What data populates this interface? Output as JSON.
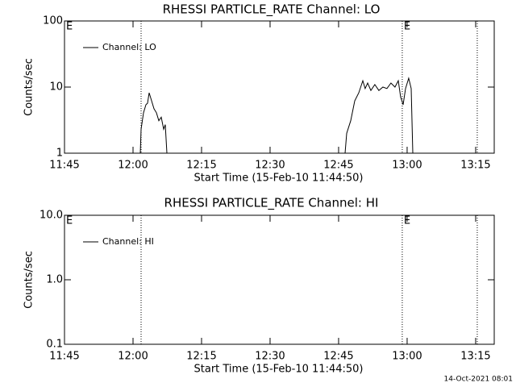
{
  "chart_data": [
    {
      "type": "line",
      "title": "RHESSI PARTICLE_RATE Channel: LO",
      "xlabel": "Start Time (15-Feb-10 11:44:50)",
      "ylabel": "Counts/sec",
      "x": [
        "12:01:35",
        "12:01:46",
        "12:02:18",
        "12:02:49",
        "12:03:11",
        "12:03:32",
        "12:04:04",
        "12:04:35",
        "12:05:07",
        "12:05:39",
        "12:06:11",
        "12:06:42",
        "12:07:04",
        "12:07:25",
        null,
        "12:46:25",
        "12:46:46",
        "12:47:39",
        "12:48:32",
        "12:49:25",
        "12:50:18",
        "12:50:49",
        "12:51:21",
        "12:52:04",
        "12:52:56",
        "12:53:49",
        "12:54:42",
        "12:55:35",
        "12:56:28",
        "12:57:21",
        "12:58:04",
        "12:58:35",
        "12:59:07",
        "12:59:39",
        "13:00:21",
        "13:00:53",
        "13:01:14"
      ],
      "series": [
        {
          "name": "Channel: LO",
          "color": "#000000",
          "values": [
            1,
            2.3,
            4.1,
            5.4,
            5.7,
            8.2,
            6.2,
            4.7,
            4.1,
            3.1,
            3.5,
            2.3,
            2.7,
            1,
            null,
            1,
            2.0,
            3.1,
            6.2,
            8.2,
            12.5,
            9.5,
            11.5,
            8.9,
            10.9,
            8.9,
            10.0,
            9.5,
            11.5,
            10.0,
            12.5,
            7.1,
            5.4,
            9.5,
            13.6,
            9.5,
            1
          ]
        }
      ],
      "xlim": [
        "11:45:00",
        "13:19:04"
      ],
      "xticks": [
        "11:45",
        "12:00",
        "12:15",
        "12:30",
        "12:45",
        "13:00",
        "13:15"
      ],
      "ylim": [
        1,
        100
      ],
      "yticks": [
        1,
        10,
        100
      ],
      "log_y": true,
      "vlines": [
        "12:01:46",
        "12:58:56",
        "13:15:21"
      ],
      "annotations": [
        {
          "text": "E",
          "x": "11:45:00"
        },
        {
          "text": "E",
          "x": "12:58:56"
        }
      ]
    },
    {
      "type": "line",
      "title": "RHESSI PARTICLE_RATE Channel: HI",
      "xlabel": "Start Time (15-Feb-10 11:44:50)",
      "ylabel": "Counts/sec",
      "x": [],
      "series": [
        {
          "name": "Channel: HI",
          "color": "#000000",
          "values": []
        }
      ],
      "xlim": [
        "11:45:00",
        "13:19:04"
      ],
      "xticks": [
        "11:45",
        "12:00",
        "12:15",
        "12:30",
        "12:45",
        "13:00",
        "13:15"
      ],
      "ylim": [
        0.1,
        10
      ],
      "yticks": [
        {
          "value": 0.1,
          "label": "0.1"
        },
        {
          "value": 1,
          "label": "1.0"
        },
        {
          "value": 10,
          "label": "10.0"
        }
      ],
      "log_y": true,
      "vlines": [
        "12:01:46",
        "12:58:56",
        "13:15:21"
      ],
      "annotations": [
        {
          "text": "E",
          "x": "11:45:00"
        },
        {
          "text": "E",
          "x": "12:58:56"
        }
      ]
    }
  ],
  "footer": "14-Oct-2021 08:01"
}
